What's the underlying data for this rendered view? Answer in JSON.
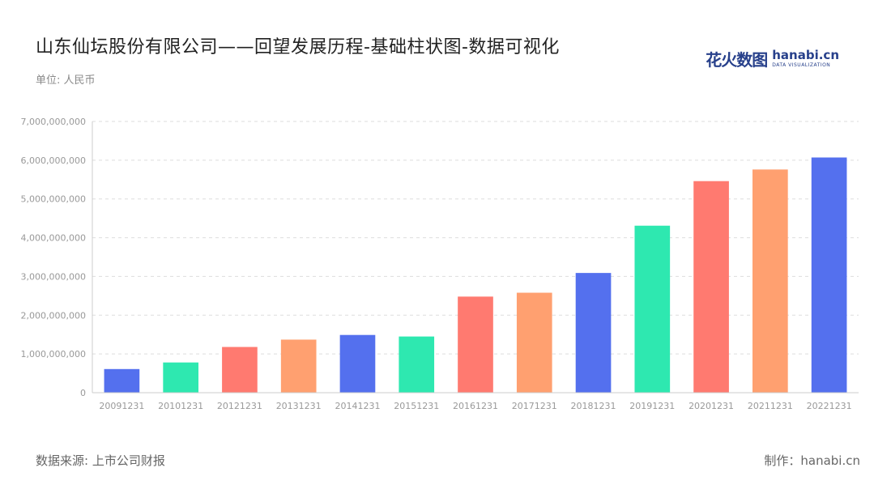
{
  "header": {
    "title": "山东仙坛股份有限公司——回望发展历程-基础柱状图-数据可视化",
    "unit": "单位: 人民币"
  },
  "brand": {
    "cn": "花火数图",
    "en": "hanabi.cn",
    "en_sub": "DATA VISUALIZATION"
  },
  "footer": {
    "source": "数据来源: 上市公司财报",
    "credit": "制作：hanabi.cn"
  },
  "chart_data": {
    "type": "bar",
    "categories": [
      "20091231",
      "20101231",
      "20121231",
      "20131231",
      "20141231",
      "20151231",
      "20161231",
      "20171231",
      "20181231",
      "20191231",
      "20201231",
      "20211231",
      "20221231"
    ],
    "values": [
      610000000,
      780000000,
      1180000000,
      1370000000,
      1490000000,
      1450000000,
      2480000000,
      2580000000,
      3090000000,
      4310000000,
      5460000000,
      5760000000,
      6070000000
    ],
    "ylim": [
      0,
      7000000000
    ],
    "yticks": [
      0,
      1000000000,
      2000000000,
      3000000000,
      4000000000,
      5000000000,
      6000000000,
      7000000000
    ],
    "ytick_labels": [
      "0",
      "1,000,000,000",
      "2,000,000,000",
      "3,000,000,000",
      "4,000,000,000",
      "5,000,000,000",
      "6,000,000,000",
      "7,000,000,000"
    ],
    "colors": [
      "#5470ee",
      "#2ee8b0",
      "#ff7a70",
      "#ffa070"
    ],
    "grid": true
  }
}
